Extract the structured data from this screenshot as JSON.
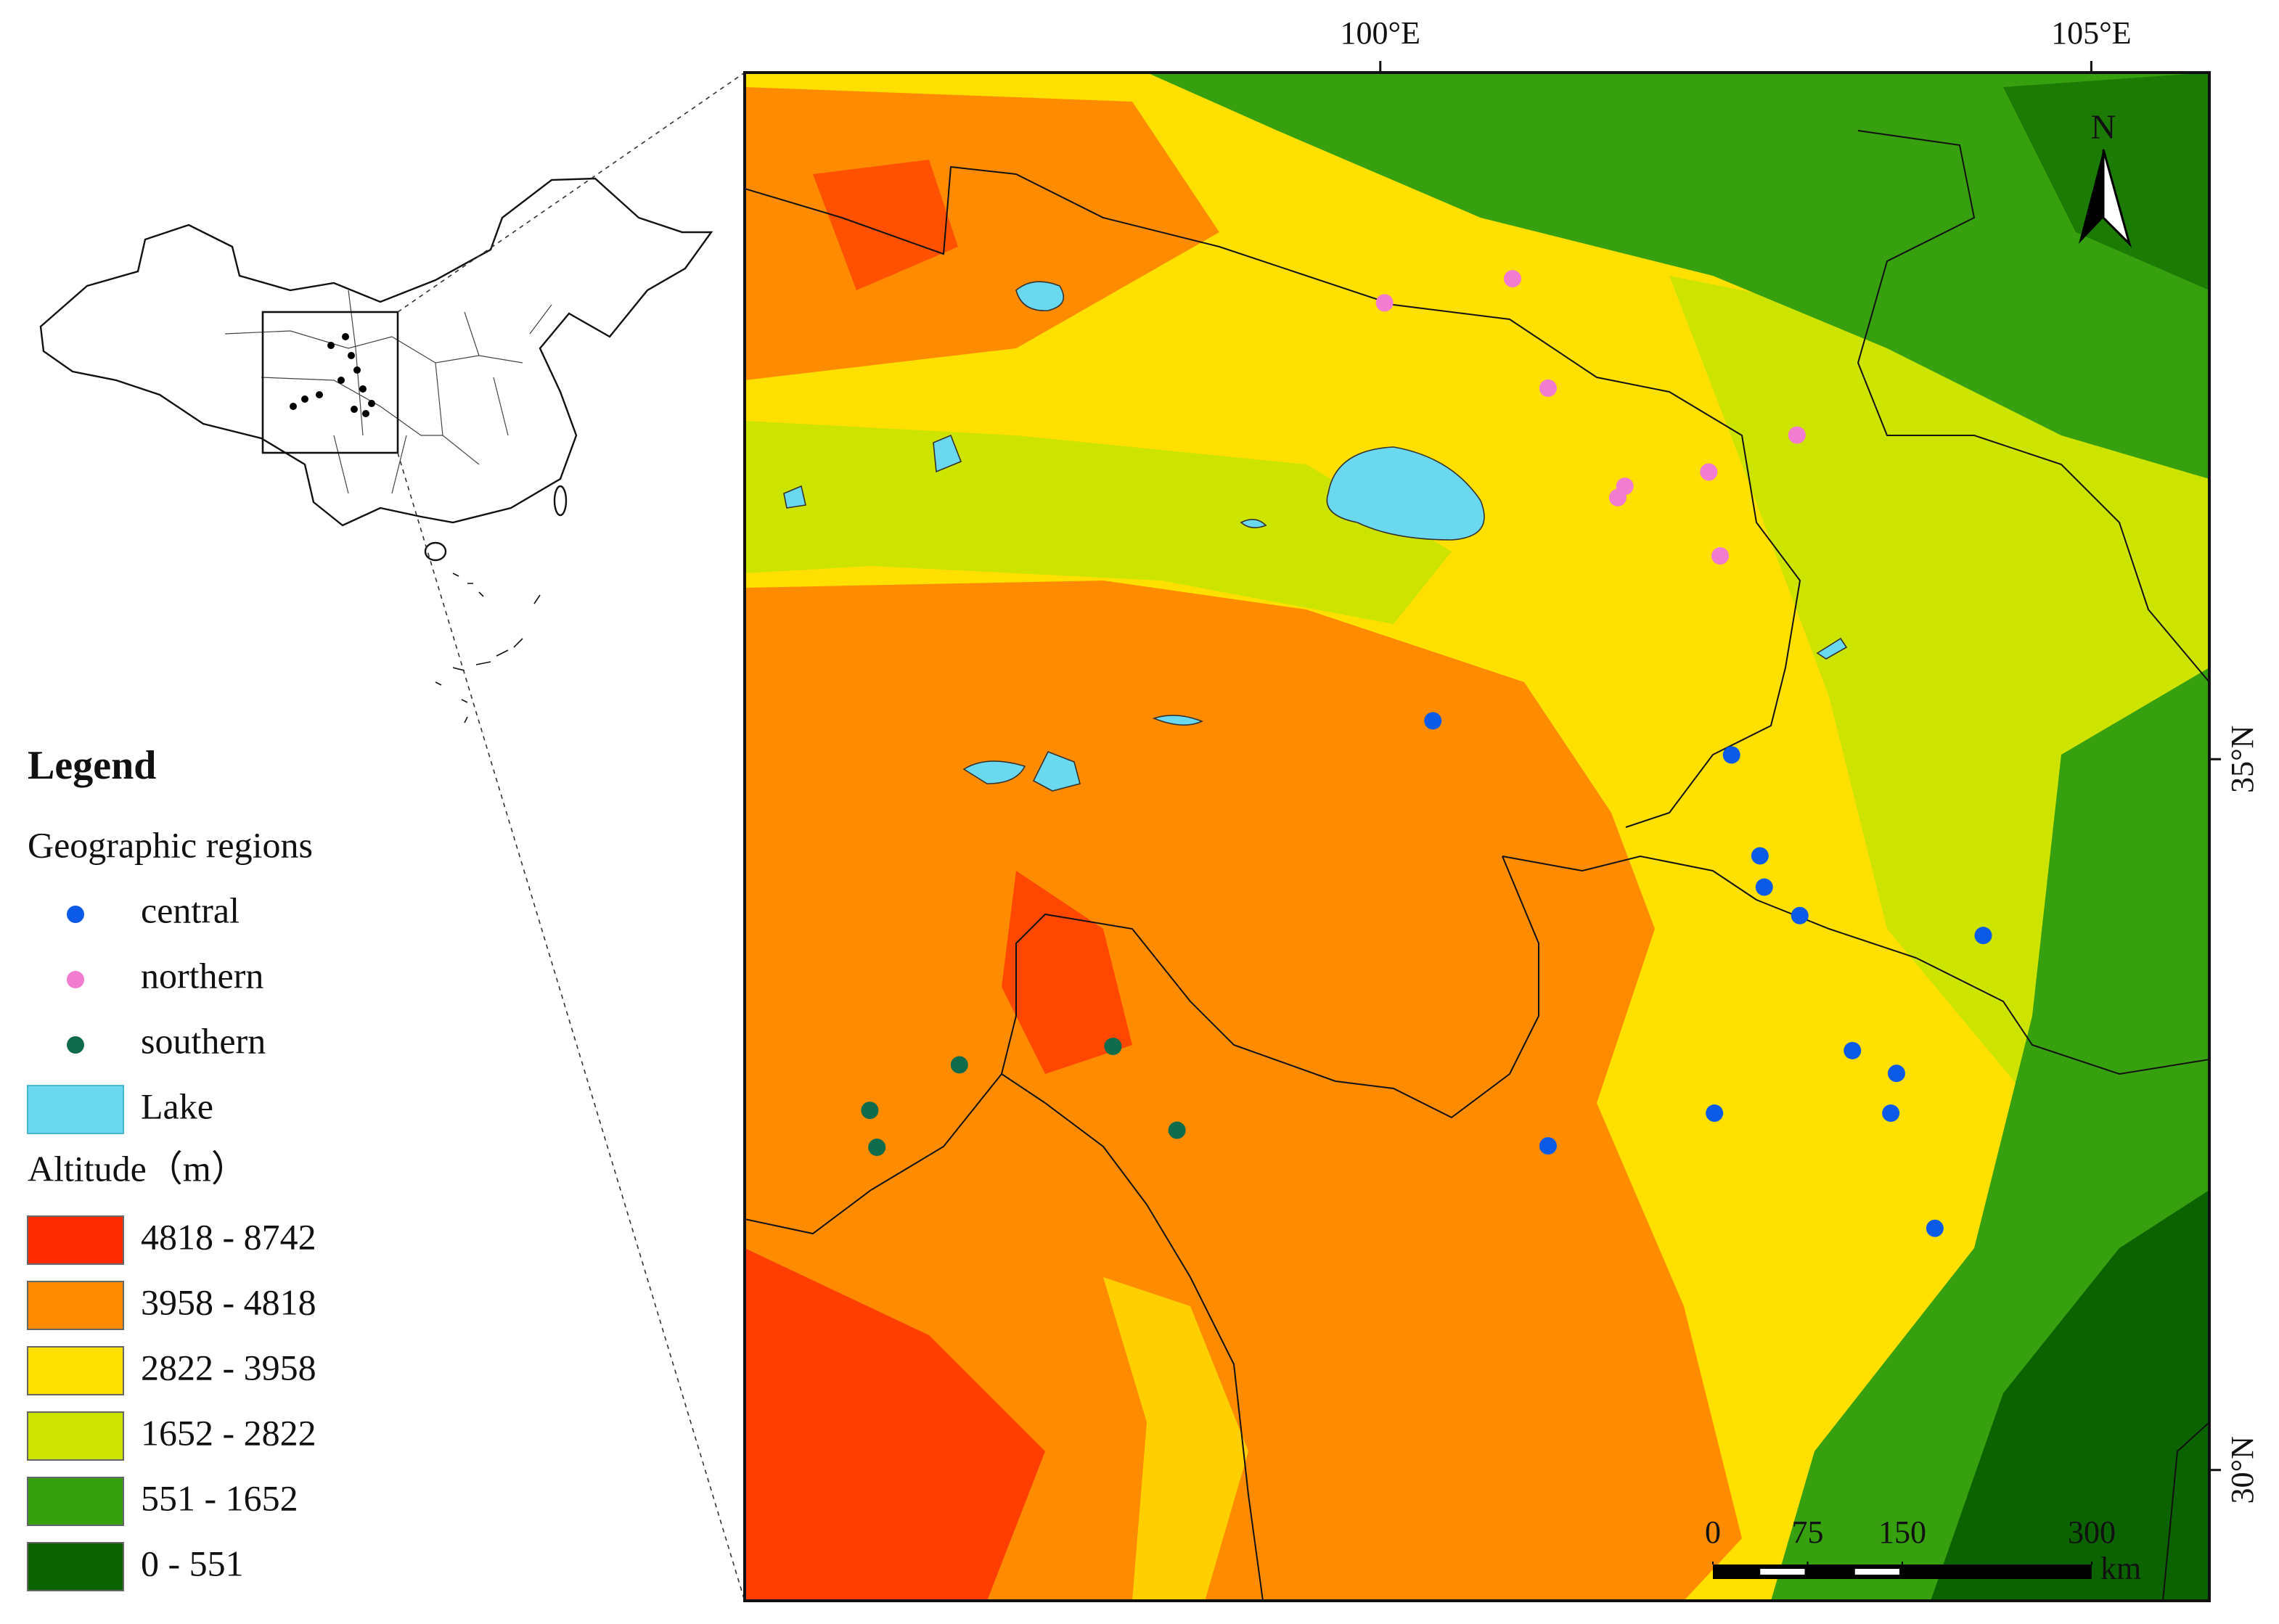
{
  "map": {
    "legend_title": "Legend",
    "regions_title": "Geographic regions",
    "regions": [
      {
        "name": "central",
        "color": "#0b5be8",
        "points": [
          [
            100.37,
            35.27
          ],
          [
            102.47,
            35.03
          ],
          [
            102.67,
            34.32
          ],
          [
            102.7,
            34.1
          ],
          [
            102.95,
            33.9
          ],
          [
            104.24,
            33.76
          ],
          [
            103.32,
            32.95
          ],
          [
            103.63,
            32.79
          ],
          [
            103.59,
            32.51
          ],
          [
            102.35,
            32.51
          ],
          [
            101.18,
            32.28
          ],
          [
            103.9,
            31.7
          ]
        ]
      },
      {
        "name": "northern",
        "color": "#f27ccf",
        "points": [
          [
            100.03,
            38.21
          ],
          [
            100.93,
            38.38
          ],
          [
            101.18,
            37.61
          ],
          [
            102.31,
            37.02
          ],
          [
            102.93,
            37.28
          ],
          [
            101.72,
            36.92
          ],
          [
            101.67,
            36.84
          ],
          [
            102.39,
            36.43
          ]
        ]
      },
      {
        "name": "southern",
        "color": "#0e6b4c",
        "points": [
          [
            98.12,
            32.98
          ],
          [
            97.04,
            32.85
          ],
          [
            96.41,
            32.53
          ],
          [
            96.46,
            32.27
          ],
          [
            98.57,
            32.39
          ]
        ]
      }
    ],
    "lake": {
      "name": "Lake",
      "color": "#6ad8ee"
    },
    "altitude_title": "Altitude（m）",
    "altitude_classes": [
      {
        "label": "4818 - 8742",
        "color": "#ff2a00"
      },
      {
        "label": "3958 - 4818",
        "color": "#ff8c00"
      },
      {
        "label": "2822 - 3958",
        "color": "#ffe000"
      },
      {
        "label": "1652 - 2822",
        "color": "#cde300"
      },
      {
        "label": "551 - 1652",
        "color": "#36a00e"
      },
      {
        "label": "0 - 551",
        "color": "#0b6300"
      }
    ],
    "xlim": [
      95.53,
      105.83
    ],
    "ylim": [
      29.08,
      39.83
    ],
    "xticks": [
      {
        "value": 100,
        "label": "100°E"
      },
      {
        "value": 105,
        "label": "105°E"
      }
    ],
    "yticks": [
      {
        "value": 35,
        "label": "35°N"
      },
      {
        "value": 30,
        "label": "30°N"
      }
    ],
    "north": "N",
    "scale_bar": {
      "ticks": [
        0,
        75,
        150,
        300
      ],
      "unit": "km"
    }
  }
}
